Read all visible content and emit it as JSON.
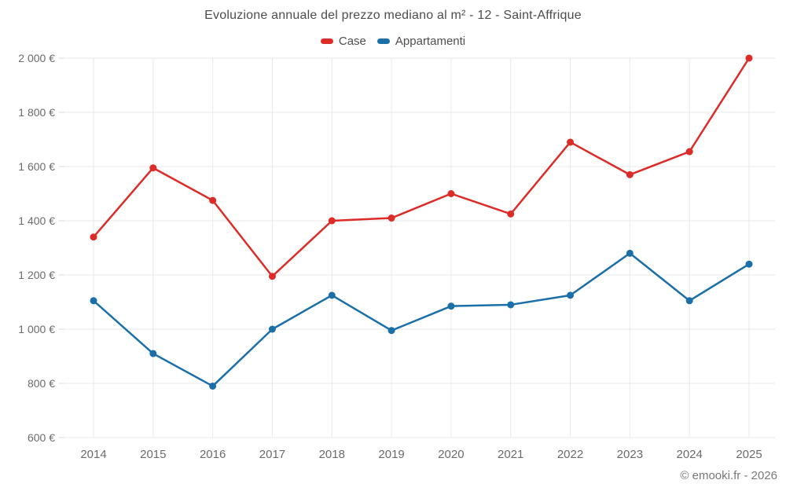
{
  "chart_data": {
    "type": "line",
    "title": "Evoluzione annuale del prezzo mediano al m² - 12 - Saint-Affrique",
    "categories": [
      "2014",
      "2015",
      "2016",
      "2017",
      "2018",
      "2019",
      "2020",
      "2021",
      "2022",
      "2023",
      "2024",
      "2025"
    ],
    "series": [
      {
        "name": "Case",
        "color": "#dd2c27",
        "values": [
          1340,
          1595,
          1475,
          1195,
          1400,
          1410,
          1500,
          1425,
          1690,
          1570,
          1655,
          2000
        ]
      },
      {
        "name": "Appartamenti",
        "color": "#1a6fa8",
        "values": [
          1105,
          910,
          790,
          1000,
          1125,
          995,
          1085,
          1090,
          1125,
          1280,
          1105,
          1240
        ]
      }
    ],
    "xlabel": "",
    "ylabel": "",
    "y_axis": {
      "min": 600,
      "max": 2000,
      "step": 200,
      "suffix": " €",
      "tick_labels": [
        "600 €",
        "800 €",
        "1 000 €",
        "1 200 €",
        "1 400 €",
        "1 600 €",
        "1 800 €",
        "2 000 €"
      ]
    },
    "grid": true,
    "legend_position": "top"
  },
  "footer": {
    "text": "© emooki.fr - 2026"
  },
  "colors": {
    "background": "#ffffff",
    "grid": "#e8e8e8",
    "tick": "#d8d8d8",
    "axis_label": "#6b6b6b",
    "title": "#4d4d4d",
    "footer": "#787878"
  }
}
